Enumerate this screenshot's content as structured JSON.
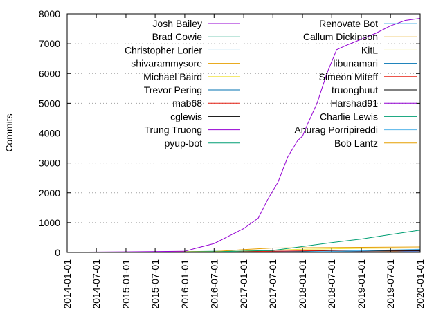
{
  "chart_data": {
    "type": "line",
    "title": "",
    "xlabel": "",
    "ylabel": "Commits",
    "ylim": [
      0,
      8000
    ],
    "yticks": [
      0,
      1000,
      2000,
      3000,
      4000,
      5000,
      6000,
      7000,
      8000
    ],
    "xlim": [
      "2014-01-01",
      "2020-01-01"
    ],
    "xticks": [
      "2014-01-01",
      "2014-07-01",
      "2015-01-01",
      "2015-07-01",
      "2016-01-01",
      "2016-07-01",
      "2017-01-01",
      "2017-07-01",
      "2018-01-01",
      "2018-07-01",
      "2019-01-01",
      "2019-07-01",
      "2020-01-01"
    ],
    "grid": "horizontal dotted",
    "legend_placement": "top, two columns",
    "series": [
      {
        "name": "Josh Bailey",
        "color": "#9400d3",
        "x": [
          "2014-01-01",
          "2015-01-01",
          "2016-01-01",
          "2016-03-01",
          "2016-07-01",
          "2016-10-01",
          "2017-01-01",
          "2017-04-01",
          "2017-06-01",
          "2017-08-01",
          "2017-10-01",
          "2017-12-01",
          "2018-01-01",
          "2018-02-01",
          "2018-04-01",
          "2018-06-01",
          "2018-08-01",
          "2018-10-01",
          "2019-01-01",
          "2019-04-01",
          "2019-07-01",
          "2019-10-01",
          "2020-01-01"
        ],
        "y": [
          5,
          20,
          40,
          130,
          300,
          550,
          800,
          1150,
          1800,
          2350,
          3200,
          3750,
          3900,
          4300,
          5000,
          6000,
          6800,
          6950,
          7150,
          7350,
          7600,
          7780,
          7850
        ]
      },
      {
        "name": "Brad Cowie",
        "color": "#009e73",
        "x": [
          "2014-01-01",
          "2015-07-01",
          "2016-07-01",
          "2017-07-01",
          "2018-01-01",
          "2018-07-01",
          "2019-01-01",
          "2019-07-01",
          "2020-01-01"
        ],
        "y": [
          0,
          5,
          20,
          70,
          200,
          330,
          450,
          600,
          750
        ]
      },
      {
        "name": "Christopher Lorier",
        "color": "#56b4e9",
        "x": [
          "2014-01-01",
          "2017-01-01",
          "2018-01-01",
          "2019-01-01",
          "2020-01-01"
        ],
        "y": [
          0,
          5,
          20,
          60,
          110
        ]
      },
      {
        "name": "shivarammysore",
        "color": "#e69f00",
        "x": [
          "2014-01-01",
          "2016-07-01",
          "2017-01-01",
          "2017-07-01",
          "2018-01-01",
          "2019-01-01",
          "2020-01-01"
        ],
        "y": [
          0,
          30,
          100,
          150,
          160,
          175,
          185
        ]
      },
      {
        "name": "Michael Baird",
        "color": "#f0e442",
        "x": [
          "2014-01-01",
          "2016-07-01",
          "2017-01-01",
          "2018-01-01",
          "2019-01-01",
          "2020-01-01"
        ],
        "y": [
          0,
          10,
          50,
          110,
          140,
          150
        ]
      },
      {
        "name": "Trevor Pering",
        "color": "#0072b2",
        "x": [
          "2014-01-01",
          "2017-07-01",
          "2018-07-01",
          "2019-07-01",
          "2020-01-01"
        ],
        "y": [
          0,
          5,
          40,
          80,
          100
        ]
      },
      {
        "name": "mab68",
        "color": "#e51e10",
        "x": [
          "2014-01-01",
          "2016-07-01",
          "2017-07-01",
          "2018-07-01",
          "2020-01-01"
        ],
        "y": [
          0,
          10,
          40,
          70,
          80
        ]
      },
      {
        "name": "cglewis",
        "color": "#000000",
        "x": [
          "2014-01-01",
          "2016-07-01",
          "2017-01-01",
          "2018-01-01",
          "2020-01-01"
        ],
        "y": [
          0,
          5,
          30,
          45,
          55
        ]
      },
      {
        "name": "Trung Truong",
        "color": "#9400d3",
        "x": [
          "2014-01-01",
          "2016-07-01",
          "2017-01-01",
          "2018-01-01",
          "2020-01-01"
        ],
        "y": [
          0,
          5,
          20,
          40,
          50
        ]
      },
      {
        "name": "pyup-bot",
        "color": "#009e73",
        "x": [
          "2014-01-01",
          "2017-07-01",
          "2018-07-01",
          "2020-01-01"
        ],
        "y": [
          0,
          5,
          30,
          60
        ]
      },
      {
        "name": "Renovate Bot",
        "color": "#56b4e9",
        "x": [
          "2014-01-01",
          "2019-07-01",
          "2020-01-01"
        ],
        "y": [
          0,
          5,
          40
        ]
      },
      {
        "name": "Callum Dickinson",
        "color": "#e69f00",
        "x": [
          "2014-01-01",
          "2019-01-01",
          "2020-01-01"
        ],
        "y": [
          0,
          5,
          30
        ]
      },
      {
        "name": "KitL",
        "color": "#f0e442",
        "x": [
          "2014-01-01",
          "2018-01-01",
          "2020-01-01"
        ],
        "y": [
          0,
          5,
          25
        ]
      },
      {
        "name": "libunamari",
        "color": "#0072b2",
        "x": [
          "2014-01-01",
          "2018-01-01",
          "2020-01-01"
        ],
        "y": [
          0,
          5,
          20
        ]
      },
      {
        "name": "Simeon Miteff",
        "color": "#e51e10",
        "x": [
          "2014-01-01",
          "2017-07-01",
          "2020-01-01"
        ],
        "y": [
          0,
          5,
          18
        ]
      },
      {
        "name": "truonghuut",
        "color": "#000000",
        "x": [
          "2014-01-01",
          "2017-01-01",
          "2020-01-01"
        ],
        "y": [
          0,
          5,
          15
        ]
      },
      {
        "name": "Harshad91",
        "color": "#9400d3",
        "x": [
          "2014-01-01",
          "2018-07-01",
          "2020-01-01"
        ],
        "y": [
          0,
          5,
          12
        ]
      },
      {
        "name": "Charlie Lewis",
        "color": "#009e73",
        "x": [
          "2014-01-01",
          "2015-01-01",
          "2015-07-01",
          "2016-01-01",
          "2016-07-01",
          "2017-01-01",
          "2020-01-01"
        ],
        "y": [
          0,
          10,
          20,
          30,
          40,
          45,
          50
        ]
      },
      {
        "name": "Anurag Porripireddi",
        "color": "#56b4e9",
        "x": [
          "2014-01-01",
          "2018-01-01",
          "2020-01-01"
        ],
        "y": [
          0,
          5,
          10
        ]
      },
      {
        "name": "Bob Lantz",
        "color": "#e69f00",
        "x": [
          "2014-01-01",
          "2016-01-01",
          "2020-01-01"
        ],
        "y": [
          0,
          5,
          10
        ]
      }
    ]
  }
}
